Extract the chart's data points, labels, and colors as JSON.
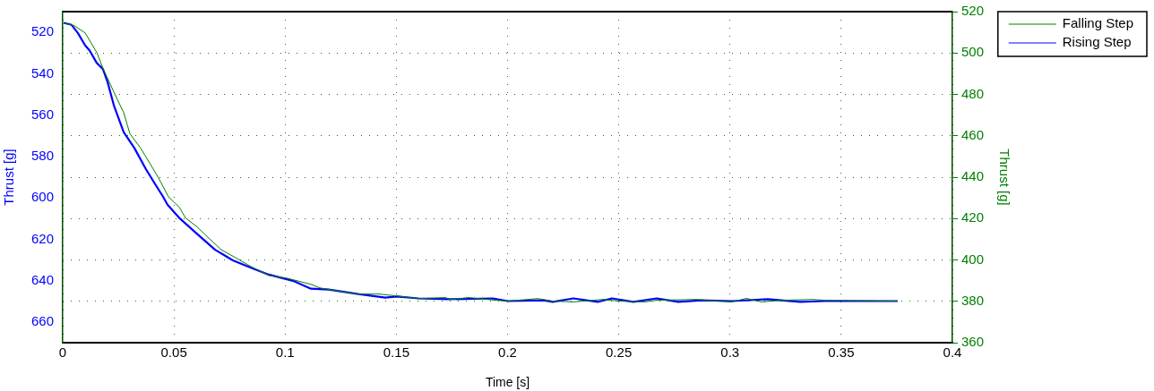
{
  "chart_data": {
    "type": "line",
    "xlabel": "Time [s]",
    "ylabel": "Thrust [g]",
    "y2label": "Thrust [g]",
    "xlim": [
      0,
      0.4
    ],
    "xticks": [
      0,
      0.05,
      0.1,
      0.15,
      0.2,
      0.25,
      0.3,
      0.35,
      0.4
    ],
    "ylim": [
      670,
      510
    ],
    "yticks": [
      520,
      540,
      560,
      580,
      600,
      620,
      640,
      660
    ],
    "y2lim": [
      360,
      520
    ],
    "y2ticks": [
      360,
      380,
      400,
      420,
      440,
      460,
      480,
      500,
      520
    ],
    "grid": true,
    "legend": "top right",
    "line_style": "solid",
    "marker": "none",
    "series": [
      {
        "name": "Falling Step",
        "color": "#008000",
        "axis": "y2",
        "x": [
          0.0004,
          0.0052,
          0.0101,
          0.0153,
          0.0181,
          0.023,
          0.0274,
          0.0302,
          0.035,
          0.0391,
          0.0431,
          0.0475,
          0.0524,
          0.0552,
          0.0604,
          0.0657,
          0.0713,
          0.0777,
          0.0846,
          0.0926,
          0.1007,
          0.1116,
          0.1156,
          0.1249,
          0.1329,
          0.1422,
          0.1503,
          0.1599,
          0.172,
          0.1744,
          0.1825,
          0.1946,
          0.2002,
          0.2135,
          0.2203,
          0.2296,
          0.2429,
          0.2497,
          0.2618,
          0.2671,
          0.2848,
          0.2941,
          0.3009,
          0.3073,
          0.3142,
          0.3235,
          0.3372,
          0.3424,
          0.3754
        ],
        "values": [
          514.4,
          513.2,
          509.7,
          500.3,
          492.6,
          481.1,
          471.2,
          461.0,
          454.1,
          446.8,
          439.6,
          430.6,
          425.5,
          420.3,
          416.0,
          410.5,
          404.9,
          401.1,
          396.8,
          392.5,
          391.2,
          388.2,
          386.5,
          384.8,
          383.5,
          383.5,
          382.6,
          381.3,
          381.8,
          380.9,
          381.8,
          380.5,
          380.1,
          381.3,
          380.1,
          379.7,
          380.9,
          380.1,
          379.7,
          380.5,
          380.9,
          380.1,
          379.7,
          381.4,
          379.7,
          380.5,
          380.9,
          380.5,
          380.1
        ]
      },
      {
        "name": "Rising Step",
        "color": "#0000ff",
        "axis": "y",
        "x": [
          0.0004,
          0.004,
          0.0068,
          0.0101,
          0.0121,
          0.0153,
          0.0181,
          0.0201,
          0.023,
          0.0274,
          0.0322,
          0.0374,
          0.0411,
          0.0451,
          0.0471,
          0.0524,
          0.0604,
          0.0685,
          0.0765,
          0.0834,
          0.0926,
          0.1035,
          0.1116,
          0.1196,
          0.1329,
          0.145,
          0.1503,
          0.1599,
          0.1732,
          0.1934,
          0.2002,
          0.2163,
          0.2203,
          0.2296,
          0.2405,
          0.2469,
          0.2566,
          0.2671,
          0.2767,
          0.2872,
          0.3009,
          0.317,
          0.3315,
          0.3424,
          0.3754
        ],
        "values": [
          515.4,
          516.4,
          520.3,
          526.3,
          528.8,
          534.8,
          537.8,
          543.8,
          555.3,
          568.2,
          575.9,
          586.1,
          592.6,
          599.4,
          603.3,
          609.7,
          617.4,
          625.1,
          630.2,
          633.2,
          637.1,
          640.1,
          643.9,
          644.3,
          646.5,
          648.2,
          647.7,
          648.6,
          649.0,
          648.6,
          649.9,
          649.5,
          650.3,
          648.6,
          650.3,
          648.6,
          650.3,
          648.6,
          650.3,
          649.5,
          649.9,
          649.0,
          650.3,
          649.9,
          649.9
        ]
      }
    ]
  }
}
